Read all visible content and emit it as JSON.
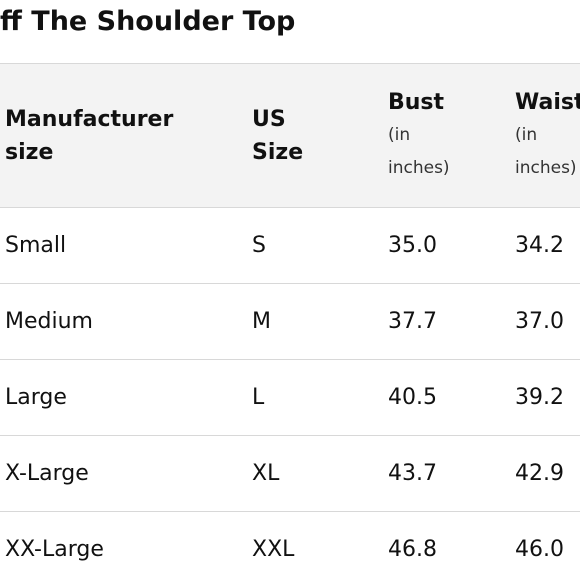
{
  "header": {
    "title": "ff The Shoulder Top"
  },
  "table": {
    "columns": [
      {
        "name": "Manufacturer size"
      },
      {
        "name": "US Size"
      },
      {
        "name": "Bust",
        "unit": "(in inches)"
      },
      {
        "name": "Waist",
        "unit": "(in inches)"
      }
    ],
    "rows": [
      [
        "Small",
        "S",
        "35.0",
        "34.2"
      ],
      [
        "Medium",
        "M",
        "37.7",
        "37.0"
      ],
      [
        "Large",
        "L",
        "40.5",
        "39.2"
      ],
      [
        "X-Large",
        "XL",
        "43.7",
        "42.9"
      ],
      [
        "XX-Large",
        "XXL",
        "46.8",
        "46.0"
      ]
    ]
  }
}
